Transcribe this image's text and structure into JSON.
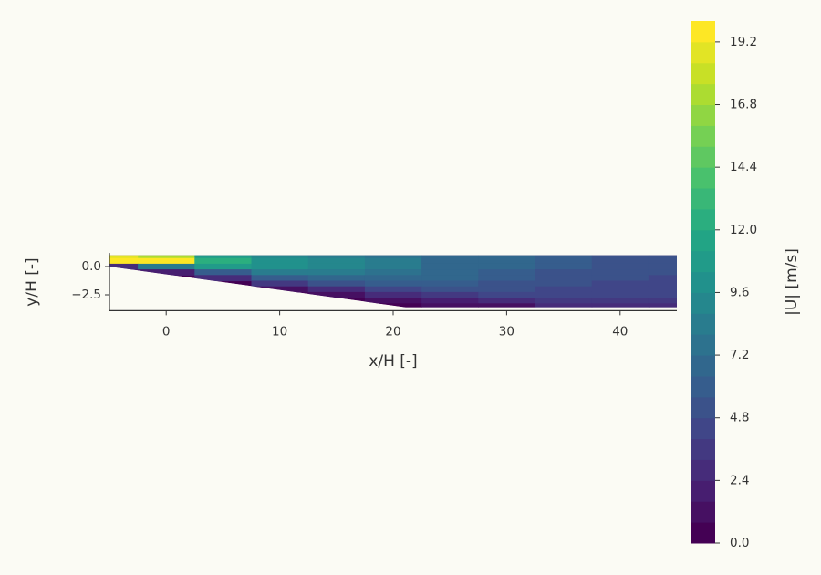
{
  "chart_data": {
    "type": "contour",
    "x_label": "x/H [-]",
    "y_label": "y/H [-]",
    "xlim": [
      -5,
      45
    ],
    "ylim": [
      -3.9,
      1.2
    ],
    "xticks": [
      0,
      10,
      20,
      30,
      40
    ],
    "yticks": [
      {
        "value": 0,
        "label": "0.0"
      },
      {
        "value": -2.5,
        "label": "−2.5"
      }
    ],
    "colormap": "viridis",
    "domain": {
      "x": [
        -5,
        45,
        45,
        21.1,
        -5
      ],
      "y": [
        1,
        1,
        -3.6,
        -3.6,
        0
      ]
    },
    "x": [
      -5,
      0,
      5,
      10,
      15,
      20,
      25,
      30,
      35,
      40,
      45
    ],
    "y": [
      1,
      0.5,
      0,
      -0.5,
      -1,
      -1.5,
      -2,
      -2.5,
      -3,
      -3.5
    ],
    "z": [
      [
        19,
        17,
        11,
        9,
        8,
        7.5,
        7,
        6.5,
        6,
        5.5,
        5
      ],
      [
        20,
        19.5,
        12,
        10,
        9,
        8,
        7,
        6.5,
        6,
        5.5,
        5
      ],
      [
        3,
        8,
        11,
        10,
        9,
        8,
        7,
        6.5,
        6,
        5.5,
        5
      ],
      [
        null,
        2,
        6,
        8,
        8.5,
        7.5,
        7,
        6,
        5.5,
        5,
        5
      ],
      [
        null,
        null,
        3,
        6,
        7,
        7,
        6.5,
        6,
        5.5,
        5,
        4.5
      ],
      [
        null,
        null,
        null,
        3.5,
        5,
        6,
        6,
        5.5,
        5,
        4.5,
        4.5
      ],
      [
        null,
        null,
        null,
        1.5,
        3,
        4.5,
        5,
        5,
        4.5,
        4.5,
        4
      ],
      [
        null,
        null,
        null,
        null,
        1.5,
        2.5,
        3.5,
        4,
        4,
        4,
        4
      ],
      [
        null,
        null,
        null,
        null,
        null,
        1,
        2,
        3,
        3.5,
        3.5,
        3.5
      ],
      [
        null,
        null,
        null,
        null,
        null,
        0.5,
        1,
        1.5,
        2.5,
        3,
        3
      ]
    ],
    "colorbar": {
      "label": "|U| [m/s]",
      "lim": [
        0,
        20
      ],
      "levels": [
        0,
        0.8,
        1.6,
        2.4,
        3.2,
        4,
        4.8,
        5.6,
        6.4,
        7.2,
        8,
        8.8,
        9.6,
        10.4,
        11.2,
        12,
        12.8,
        13.6,
        14.4,
        15.2,
        16,
        16.8,
        17.6,
        18.4,
        19.2,
        20
      ],
      "ticks": [
        {
          "value": 0,
          "label": "0.0"
        },
        2.4,
        4.8,
        7.2,
        9.6,
        {
          "value": 12,
          "label": "12.0"
        },
        14.4,
        16.8,
        19.2
      ]
    }
  }
}
